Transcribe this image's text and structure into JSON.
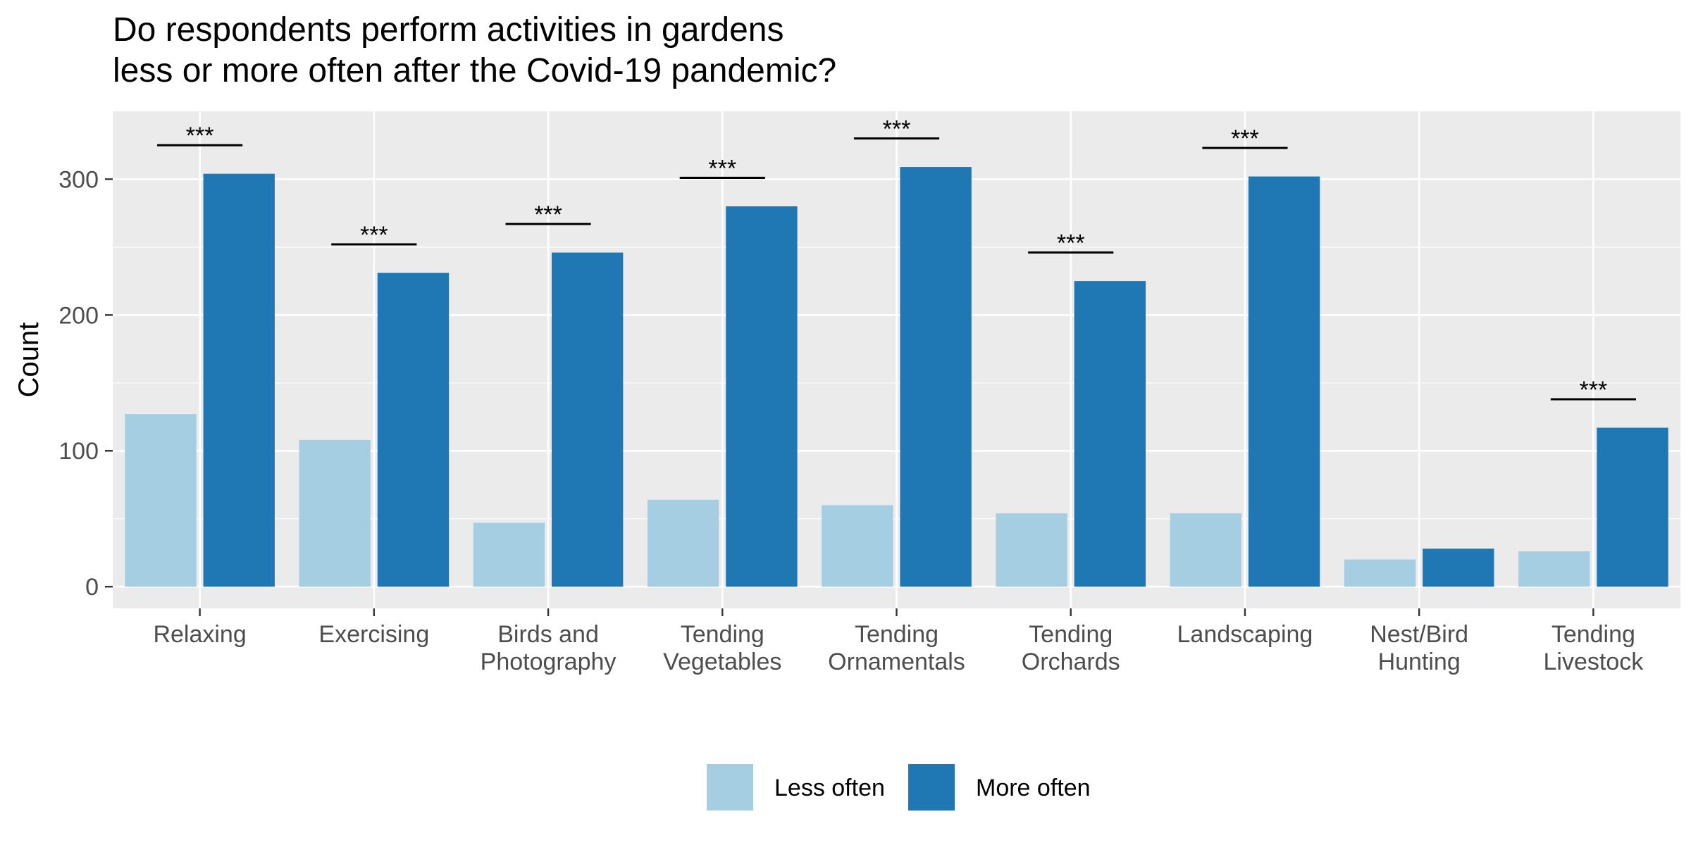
{
  "chart_data": {
    "type": "bar",
    "title_lines": [
      "Do respondents perform activities in gardens",
      "less or more often after the Covid-19 pandemic?"
    ],
    "xlabel": "",
    "ylabel": "Count",
    "ylim": [
      -16,
      350
    ],
    "yticks": [
      0,
      100,
      200,
      300
    ],
    "grid": true,
    "legend_position": "bottom",
    "categories": [
      [
        "Relaxing"
      ],
      [
        "Exercising"
      ],
      [
        "Birds and",
        "Photography"
      ],
      [
        "Tending",
        "Vegetables"
      ],
      [
        "Tending",
        "Ornamentals"
      ],
      [
        "Tending",
        "Orchards"
      ],
      [
        "Landscaping"
      ],
      [
        "Nest/Bird",
        "Hunting"
      ],
      [
        "Tending",
        "Livestock"
      ]
    ],
    "series": [
      {
        "name": "Less often",
        "color": "#a6cee3",
        "values": [
          127,
          108,
          47,
          64,
          60,
          54,
          54,
          20,
          26
        ]
      },
      {
        "name": "More often",
        "color": "#1f78b4",
        "values": [
          304,
          231,
          246,
          280,
          309,
          225,
          302,
          28,
          117
        ]
      }
    ],
    "significance": [
      {
        "category_index": 0,
        "label": "***",
        "y": 325
      },
      {
        "category_index": 1,
        "label": "***",
        "y": 252
      },
      {
        "category_index": 2,
        "label": "***",
        "y": 267
      },
      {
        "category_index": 3,
        "label": "***",
        "y": 301
      },
      {
        "category_index": 4,
        "label": "***",
        "y": 330
      },
      {
        "category_index": 5,
        "label": "***",
        "y": 246
      },
      {
        "category_index": 6,
        "label": "***",
        "y": 323
      },
      {
        "category_index": 8,
        "label": "***",
        "y": 138
      }
    ],
    "panel_color": "#ebebeb",
    "grid_color": "#ffffff"
  }
}
